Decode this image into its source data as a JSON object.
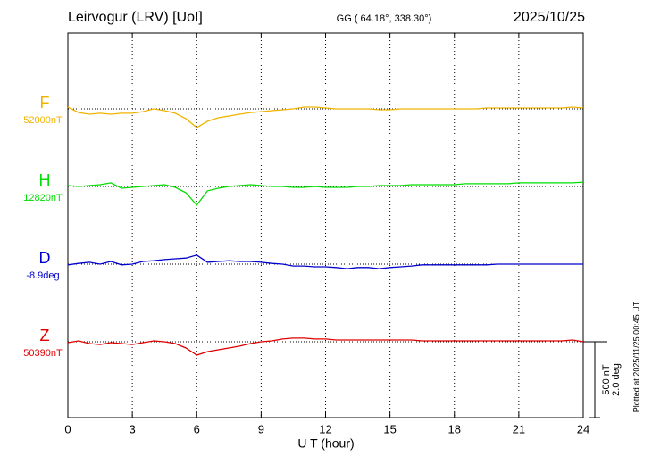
{
  "chart_data": {
    "type": "line",
    "title": "Leirvogur (LRV)  [UoI]",
    "subtitle": "GG ( 64.18°, 338.30°)",
    "date": "2025/10/25",
    "x_label": "U T (hour)",
    "footnote": "Plotted at 2025/11/25 00:45 UT",
    "xlim": [
      0,
      24
    ],
    "xticks": [
      0,
      3,
      6,
      9,
      12,
      15,
      18,
      21,
      24
    ],
    "grid": true,
    "scale": {
      "nT": 500,
      "deg": 2.0,
      "nT_label": "500 nT",
      "deg_label": "2.0 deg"
    },
    "x": [
      0,
      0.5,
      1,
      1.5,
      2,
      2.5,
      3,
      3.5,
      4,
      4.5,
      5,
      5.5,
      6,
      6.5,
      7,
      7.5,
      8,
      8.5,
      9,
      9.5,
      10,
      10.5,
      11,
      11.5,
      12,
      12.5,
      13,
      13.5,
      14,
      14.5,
      15,
      15.5,
      16,
      16.5,
      17,
      17.5,
      18,
      18.5,
      19,
      19.5,
      20,
      20.5,
      21,
      21.5,
      22,
      22.5,
      23,
      23.5,
      24
    ],
    "series": [
      {
        "name": "F",
        "color": "#f0b400",
        "unit": "nT",
        "baseline": 52000,
        "baseline_label": "52000nT",
        "values": [
          52012,
          51976,
          51965,
          51971,
          51965,
          51971,
          51971,
          51982,
          52000,
          51988,
          51971,
          51935,
          51877,
          51918,
          51941,
          51953,
          51965,
          51976,
          51982,
          51988,
          51994,
          52000,
          52012,
          52012,
          52006,
          52000,
          52000,
          52000,
          52000,
          51994,
          51994,
          52000,
          52000,
          52000,
          52000,
          52000,
          52000,
          52000,
          52000,
          52006,
          52006,
          52006,
          52006,
          52006,
          52006,
          52006,
          52006,
          52012,
          52006
        ]
      },
      {
        "name": "H",
        "color": "#00dd00",
        "unit": "nT",
        "baseline": 12820,
        "baseline_label": "12820nT",
        "values": [
          12826,
          12820,
          12826,
          12832,
          12844,
          12808,
          12814,
          12820,
          12826,
          12832,
          12814,
          12779,
          12697,
          12791,
          12808,
          12820,
          12826,
          12832,
          12826,
          12820,
          12820,
          12814,
          12814,
          12820,
          12814,
          12814,
          12814,
          12820,
          12820,
          12826,
          12826,
          12826,
          12832,
          12832,
          12832,
          12832,
          12832,
          12838,
          12838,
          12838,
          12838,
          12838,
          12844,
          12844,
          12844,
          12844,
          12844,
          12844,
          12849
        ]
      },
      {
        "name": "D",
        "color": "#0000cc",
        "unit": "deg",
        "baseline": -8.9,
        "baseline_label": "-8.9deg",
        "values": [
          -8.92,
          -8.88,
          -8.85,
          -8.9,
          -8.83,
          -8.92,
          -8.9,
          -8.83,
          -8.81,
          -8.78,
          -8.76,
          -8.74,
          -8.66,
          -8.85,
          -8.83,
          -8.81,
          -8.83,
          -8.83,
          -8.85,
          -8.88,
          -8.9,
          -8.95,
          -8.95,
          -8.97,
          -8.97,
          -8.99,
          -9.02,
          -8.99,
          -8.99,
          -9.02,
          -8.99,
          -8.97,
          -8.95,
          -8.92,
          -8.92,
          -8.92,
          -8.92,
          -8.92,
          -8.92,
          -8.92,
          -8.9,
          -8.9,
          -8.9,
          -8.9,
          -8.9,
          -8.9,
          -8.9,
          -8.9,
          -8.9
        ]
      },
      {
        "name": "Z",
        "color": "#e00000",
        "unit": "nT",
        "baseline": 50390,
        "baseline_label": "50390nT",
        "values": [
          50384,
          50396,
          50378,
          50372,
          50384,
          50378,
          50372,
          50384,
          50396,
          50390,
          50378,
          50349,
          50302,
          50325,
          50337,
          50349,
          50361,
          50378,
          50390,
          50396,
          50408,
          50414,
          50414,
          50408,
          50408,
          50402,
          50402,
          50402,
          50402,
          50402,
          50402,
          50402,
          50402,
          50396,
          50396,
          50396,
          50396,
          50396,
          50396,
          50396,
          50396,
          50396,
          50396,
          50396,
          50396,
          50396,
          50396,
          50402,
          50390
        ]
      }
    ]
  }
}
